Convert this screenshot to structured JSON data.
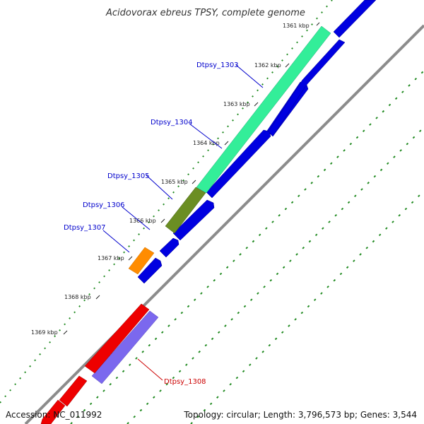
{
  "title": "Acidovorax ebreus TPSY, complete genome",
  "footer": {
    "accession": "Accession: NC_011992",
    "summary": "Topology: circular; Length: 3,796,573 bp; Genes: 3,544"
  },
  "scale": {
    "ticks": [
      "1361 kbp",
      "1362 kbp",
      "1363 kbp",
      "1364 kbp",
      "1365 kbp",
      "1366 kbp",
      "1367 kbp",
      "1368 kbp",
      "1369 kbp"
    ]
  },
  "genes": [
    {
      "name": "Dtpsy_1303",
      "label_color": "#0000cc"
    },
    {
      "name": "Dtpsy_1304",
      "label_color": "#0000cc"
    },
    {
      "name": "Dtpsy_1305",
      "label_color": "#0000cc"
    },
    {
      "name": "Dtpsy_1306",
      "label_color": "#0000cc"
    },
    {
      "name": "Dtpsy_1307",
      "label_color": "#0000cc"
    },
    {
      "name": "Dtpsy_1308",
      "label_color": "#cc0000"
    }
  ],
  "colors": {
    "backbone": "#8c8c8c",
    "cds_forward": "#0000e0",
    "cds_reverse": "#ee0000",
    "gene_1303_1304": "#33ee99",
    "gene_1305": "#6b8e23",
    "gene_1307": "#ff8c00",
    "gene_1308": "#7b68ee",
    "grid_dots": "#228b22"
  }
}
